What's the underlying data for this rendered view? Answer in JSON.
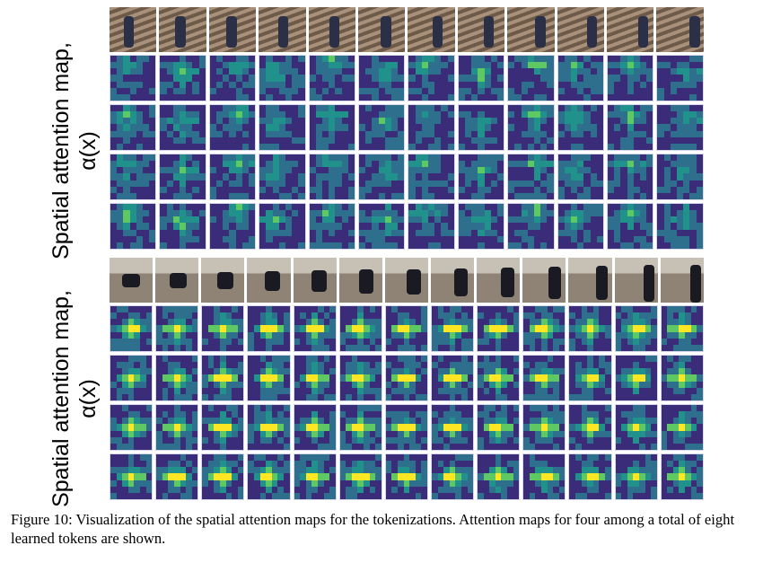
{
  "figure": {
    "caption": "Figure 10: Visualization of the spatial attention maps for the tokenizations. Attention maps for four among a total of eight learned tokens are shown.",
    "top_panel": {
      "label_line1": "Spatial attention map,",
      "label_line2": "α(x)",
      "frame_count": 12,
      "token_rows": 4
    },
    "bottom_panel": {
      "label_line1": "Spatial attention map,",
      "label_line2": "α(x)",
      "frame_count": 13,
      "token_rows": 4
    },
    "colors": {
      "low": "#3b2c7a",
      "mid_low": "#2f6f8e",
      "mid": "#21918c",
      "mid_high": "#5ec962",
      "high": "#fde725",
      "stairs_bg": "#8d7a66",
      "room_bg": "#9a8e80"
    }
  }
}
